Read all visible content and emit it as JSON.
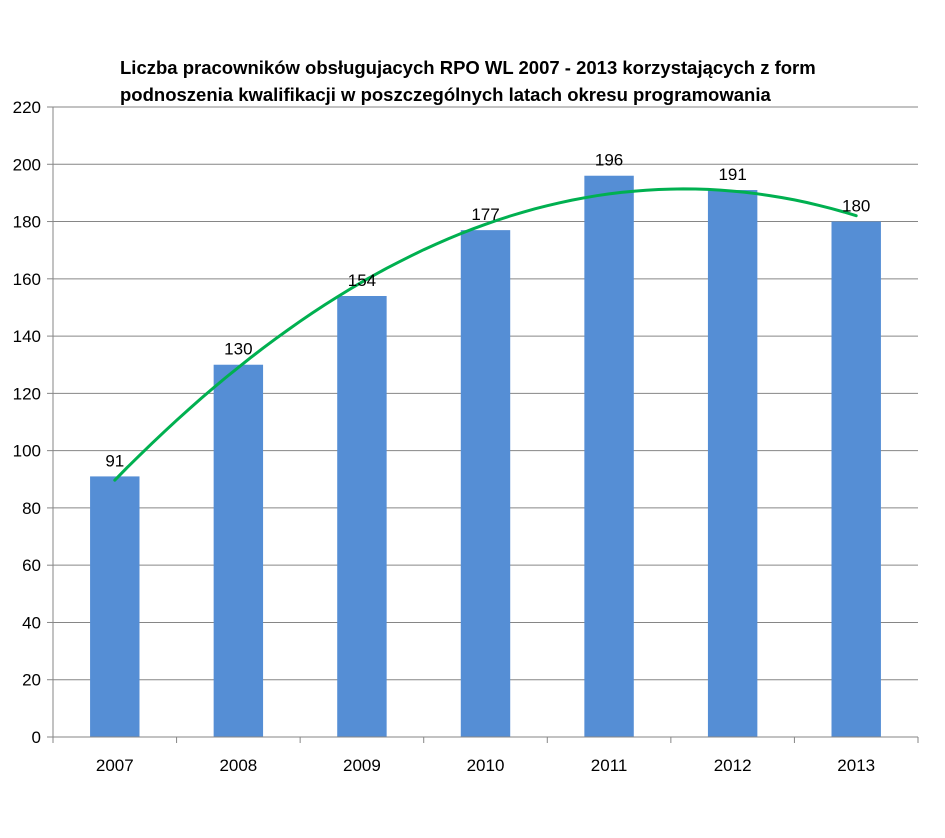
{
  "chart_data": {
    "type": "bar",
    "title": [
      "Liczba pracowników obsługujacych RPO WL 2007 - 2013 korzystających z form",
      "podnoszenia  kwalifikacji w poszczególnych latach okresu programowania"
    ],
    "xlabel": "",
    "ylabel": "",
    "categories": [
      "2007",
      "2008",
      "2009",
      "2010",
      "2011",
      "2012",
      "2013"
    ],
    "values": [
      91,
      130,
      154,
      177,
      196,
      191,
      180
    ],
    "ylim": [
      0,
      220
    ],
    "yticks": [
      0,
      20,
      40,
      60,
      80,
      100,
      120,
      140,
      160,
      180,
      200,
      220
    ],
    "grid": true,
    "legend": "none",
    "trendline": {
      "type": "polynomial",
      "order": 2
    },
    "colors": {
      "bar": "#558ED5",
      "trend": "#00B050",
      "grid": "#868686"
    }
  }
}
